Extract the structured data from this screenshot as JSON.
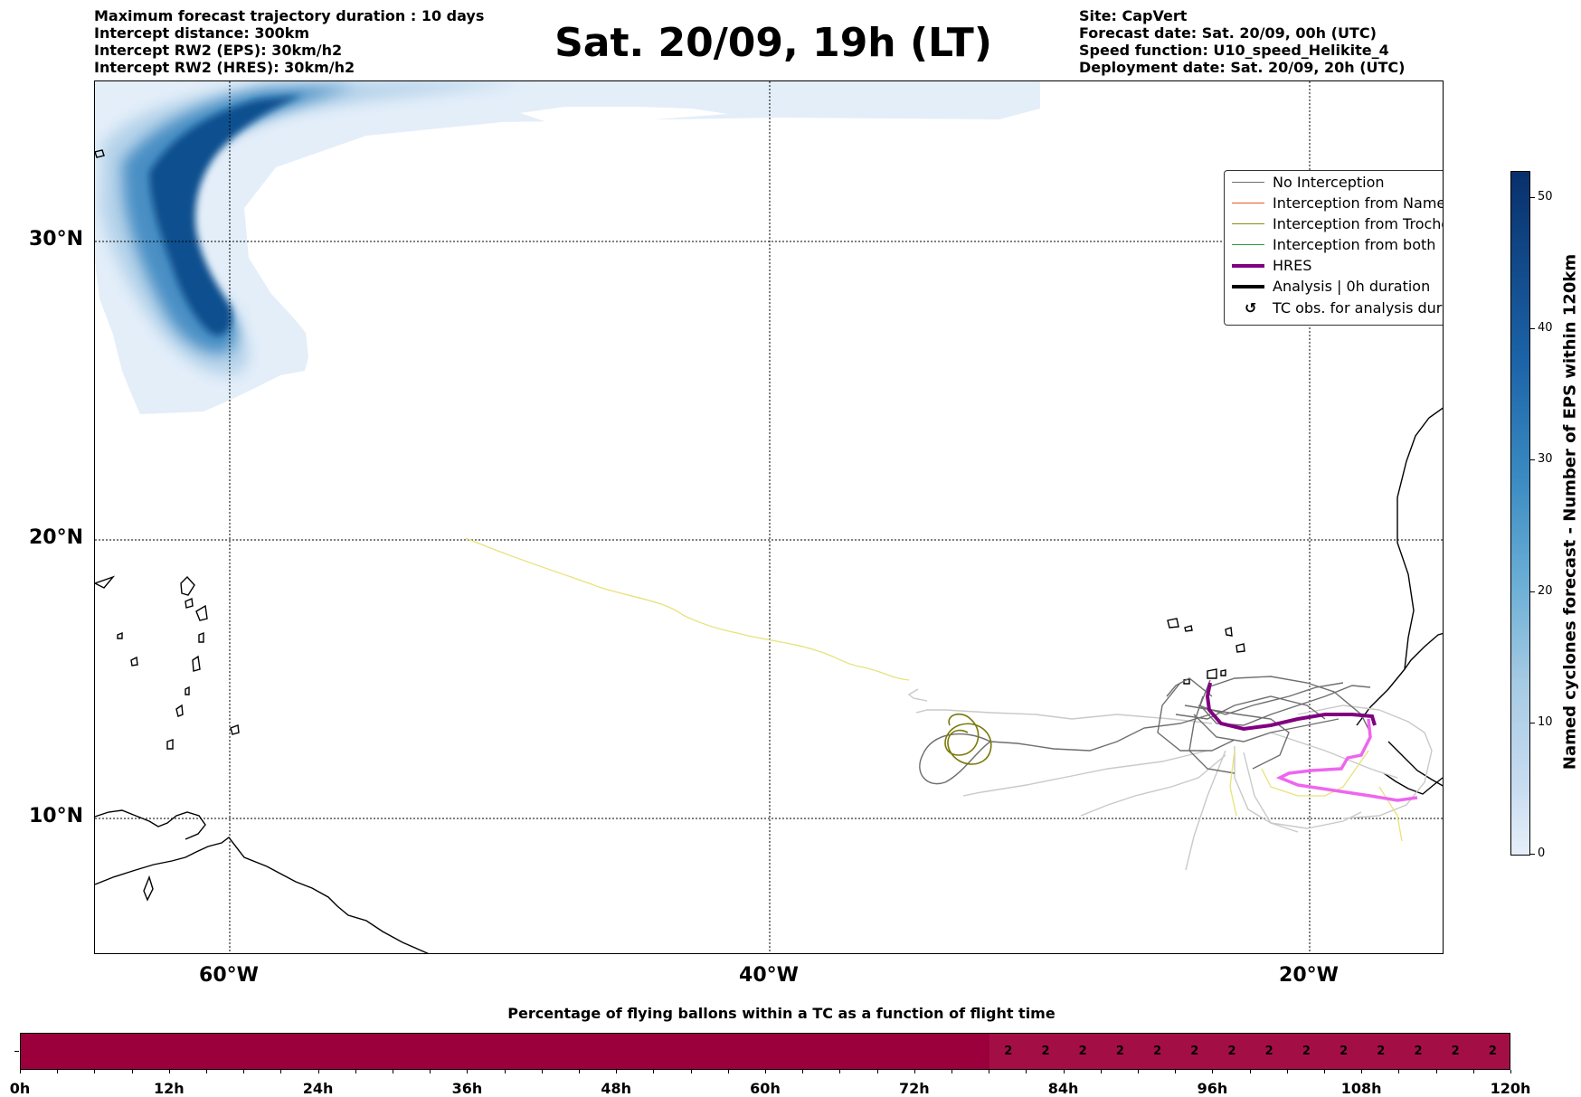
{
  "header_left": [
    "Maximum forecast trajectory duration : 10 days",
    "Intercept distance: 300km",
    "Intercept RW2 (EPS):  30km/h2",
    "Intercept RW2 (HRES): 30km/h2"
  ],
  "title": "Sat. 20/09, 19h (LT)",
  "header_right": [
    "Site: CapVert",
    "Forecast date: Sat. 20/09, 00h (UTC)",
    "Speed function: U10_speed_Helikite_4",
    "Deployment date: Sat. 20/09, 20h (UTC)"
  ],
  "map": {
    "lat_labels": [
      "30°N",
      "20°N",
      "10°N"
    ],
    "lon_labels": [
      "60°W",
      "40°W",
      "20°W"
    ]
  },
  "legend": [
    {
      "label": "No Interception",
      "color": "#6e6e6e",
      "style": "thin"
    },
    {
      "label": "Interception from Named cyclone",
      "color": "#e8552b",
      "style": "thin"
    },
    {
      "label": "Interception from Trochoid",
      "color": "#8a8a16",
      "style": "thin"
    },
    {
      "label": "Interception from both",
      "color": "#2e9a3e",
      "style": "thin"
    },
    {
      "label": "HRES",
      "color": "#800080",
      "style": "thick"
    },
    {
      "label": "Analysis | 0h duration",
      "color": "#000000",
      "style": "thick"
    },
    {
      "label": "TC obs. for analysis duration",
      "color": "#000000",
      "style": "symbol"
    }
  ],
  "colorbar": {
    "label": "Named cyclones forecast - Number of EPS within 120km",
    "ticks": [
      "0",
      "10",
      "20",
      "30",
      "40",
      "50"
    ],
    "max": 52
  },
  "bottom_title": "Percentage of flying ballons within a TC as a function of flight time",
  "chart_data": {
    "type": "heatmap",
    "title": "Percentage of flying ballons within a TC as a function of flight time",
    "x_unit": "hours",
    "x_range": [
      0,
      120
    ],
    "bin_hours": 3,
    "x_tick_labels": [
      "0h",
      "12h",
      "24h",
      "36h",
      "48h",
      "60h",
      "72h",
      "84h",
      "96h",
      "108h",
      "120h"
    ],
    "zero_until_hours": 78,
    "annotated_bins": [
      {
        "start": 78,
        "label": "2"
      },
      {
        "start": 81,
        "label": "2"
      },
      {
        "start": 84,
        "label": "2"
      },
      {
        "start": 87,
        "label": "2"
      },
      {
        "start": 90,
        "label": "2"
      },
      {
        "start": 93,
        "label": "2"
      },
      {
        "start": 96,
        "label": "2"
      },
      {
        "start": 99,
        "label": "2"
      },
      {
        "start": 102,
        "label": "2"
      },
      {
        "start": 105,
        "label": "2"
      },
      {
        "start": 108,
        "label": "2"
      },
      {
        "start": 111,
        "label": "2"
      },
      {
        "start": 114,
        "label": "2"
      },
      {
        "start": 117,
        "label": "2"
      }
    ]
  }
}
